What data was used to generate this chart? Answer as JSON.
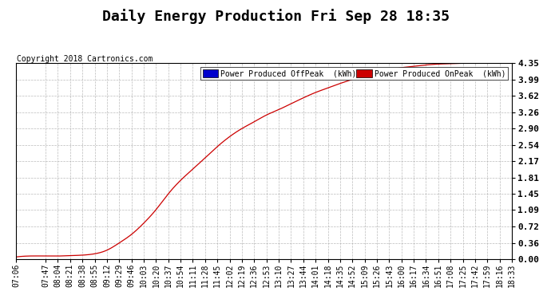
{
  "title": "Daily Energy Production Fri Sep 28 18:35",
  "copyright": "Copyright 2018 Cartronics.com",
  "legend_labels": [
    "Power Produced OffPeak  (kWh)",
    "Power Produced OnPeak  (kWh)"
  ],
  "legend_colors": [
    "#0000cc",
    "#cc0000"
  ],
  "line_color": "#cc0000",
  "background_color": "#ffffff",
  "grid_color": "#aaaaaa",
  "yticks": [
    0.0,
    0.36,
    0.72,
    1.09,
    1.45,
    1.81,
    2.17,
    2.54,
    2.9,
    3.26,
    3.62,
    3.99,
    4.35
  ],
  "ylim": [
    0.0,
    4.35
  ],
  "xtick_labels": [
    "07:06",
    "07:47",
    "08:04",
    "08:21",
    "08:38",
    "08:55",
    "09:12",
    "09:29",
    "09:46",
    "10:03",
    "10:20",
    "10:37",
    "10:54",
    "11:11",
    "11:28",
    "11:45",
    "12:02",
    "12:19",
    "12:36",
    "12:53",
    "13:10",
    "13:27",
    "13:44",
    "14:01",
    "14:18",
    "14:35",
    "14:52",
    "15:09",
    "15:26",
    "15:43",
    "16:00",
    "16:17",
    "16:34",
    "16:51",
    "17:08",
    "17:25",
    "17:42",
    "17:59",
    "18:16",
    "18:33"
  ],
  "title_fontsize": 13,
  "tick_fontsize": 7,
  "copyright_fontsize": 7,
  "keypoints_t": [
    426,
    467,
    484,
    501,
    518,
    535,
    552,
    569,
    586,
    603,
    620,
    637,
    654,
    671,
    688,
    705,
    722,
    739,
    756,
    773,
    790,
    807,
    824,
    841,
    858,
    875,
    892,
    909,
    926,
    943,
    960,
    977,
    994,
    1011,
    1028,
    1045,
    1062,
    1079,
    1096,
    1113
  ],
  "keypoints_y": [
    0.05,
    0.07,
    0.07,
    0.08,
    0.09,
    0.12,
    0.2,
    0.36,
    0.55,
    0.8,
    1.1,
    1.45,
    1.75,
    2.0,
    2.25,
    2.5,
    2.72,
    2.9,
    3.05,
    3.2,
    3.32,
    3.45,
    3.58,
    3.7,
    3.8,
    3.9,
    3.99,
    4.08,
    4.15,
    4.2,
    4.25,
    4.28,
    4.31,
    4.33,
    4.34,
    4.35,
    4.35,
    4.35,
    4.35,
    4.35
  ]
}
